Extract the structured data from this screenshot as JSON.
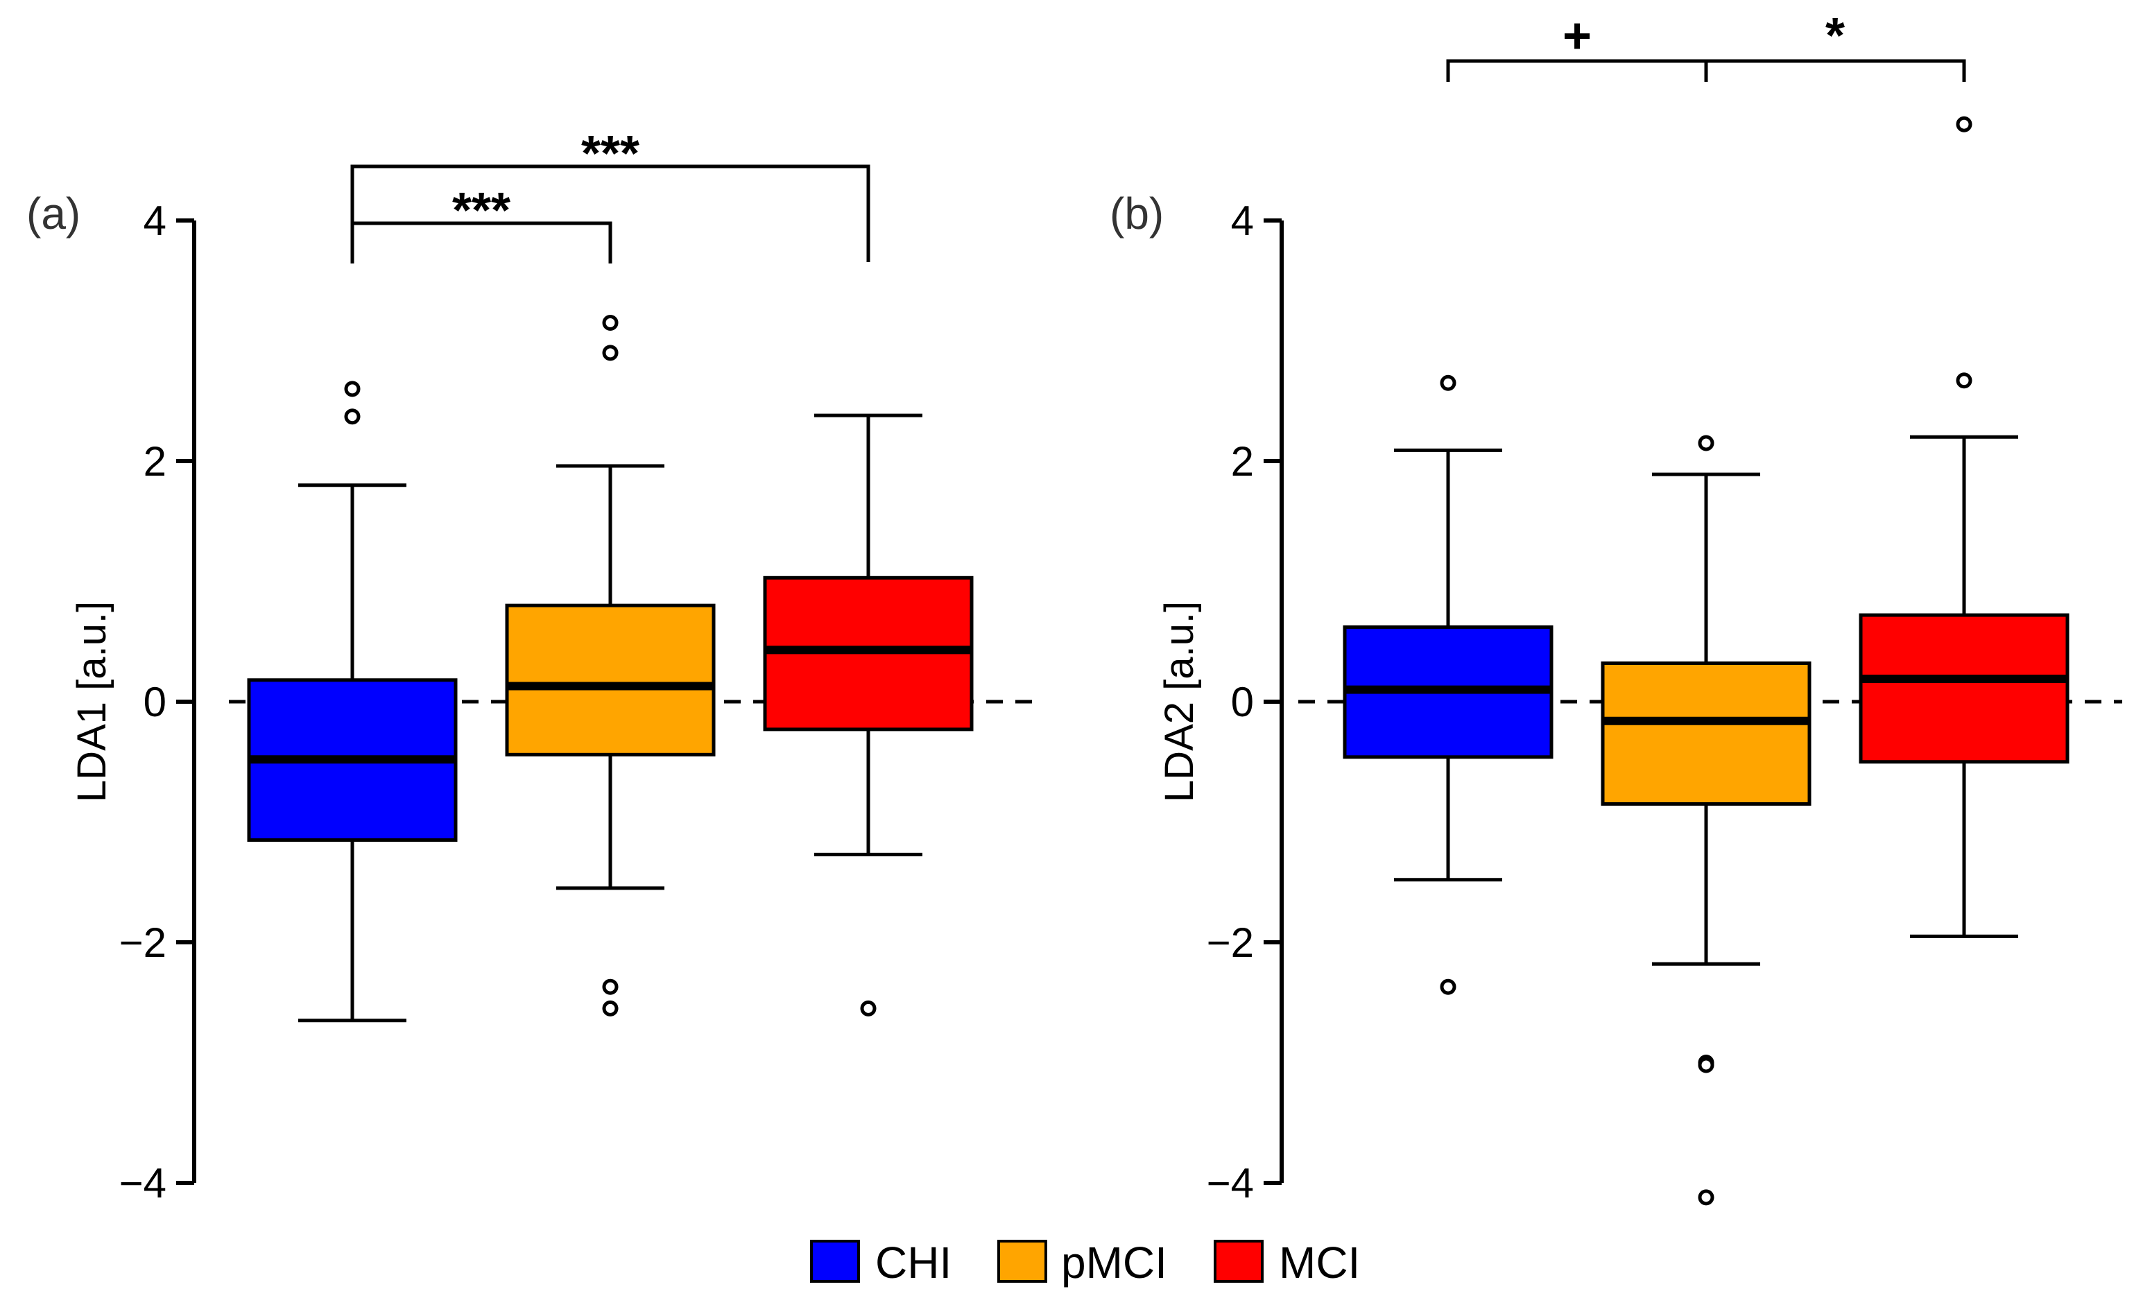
{
  "colors": {
    "CHI": "#0000FF",
    "pMCI": "#FFA500",
    "MCI": "#FF0000"
  },
  "legend": [
    {
      "name": "CHI",
      "color": "#0000FF"
    },
    {
      "name": "pMCI",
      "color": "#FFA500"
    },
    {
      "name": "MCI",
      "color": "#FF0000"
    }
  ],
  "chart_data": [
    {
      "type": "box",
      "panel_label": "(a)",
      "ylabel": "LDA1 [a.u.]",
      "ylim": [
        -4,
        4
      ],
      "yticks": [
        4,
        2,
        0,
        -2,
        -4
      ],
      "ytick_labels": [
        "4",
        "2",
        "0",
        "−2",
        "−4"
      ],
      "reference_line": 0,
      "groups": [
        {
          "name": "CHI",
          "whisker_low": -2.65,
          "q1": -1.15,
          "median": -0.48,
          "q3": 0.18,
          "whisker_high": 1.8,
          "outliers": [
            2.6,
            2.37
          ]
        },
        {
          "name": "pMCI",
          "whisker_low": -1.55,
          "q1": -0.44,
          "median": 0.13,
          "q3": 0.8,
          "whisker_high": 1.96,
          "outliers": [
            3.15,
            2.9,
            -2.37,
            -2.55
          ]
        },
        {
          "name": "MCI",
          "whisker_low": -1.27,
          "q1": -0.23,
          "median": 0.43,
          "q3": 1.03,
          "whisker_high": 2.38,
          "outliers": [
            -2.55
          ]
        }
      ],
      "significance": [
        {
          "from": "CHI",
          "to": "pMCI",
          "label": "***"
        },
        {
          "from": "CHI",
          "to": "MCI",
          "label": "***"
        }
      ]
    },
    {
      "type": "box",
      "panel_label": "(b)",
      "ylabel": "LDA2 [a.u.]",
      "ylim": [
        -4,
        4
      ],
      "yticks": [
        4,
        2,
        0,
        -2,
        -4
      ],
      "ytick_labels": [
        "4",
        "2",
        "0",
        "−2",
        "−4"
      ],
      "reference_line": 0,
      "groups": [
        {
          "name": "CHI",
          "whisker_low": -1.48,
          "q1": -0.46,
          "median": 0.1,
          "q3": 0.62,
          "whisker_high": 2.09,
          "outliers": [
            2.65,
            -2.37
          ]
        },
        {
          "name": "pMCI",
          "whisker_low": -2.18,
          "q1": -0.85,
          "median": -0.16,
          "q3": 0.32,
          "whisker_high": 1.89,
          "outliers": [
            2.15,
            -3.0,
            -3.02,
            -4.12
          ]
        },
        {
          "name": "MCI",
          "whisker_low": -1.95,
          "q1": -0.5,
          "median": 0.19,
          "q3": 0.72,
          "whisker_high": 2.2,
          "outliers": [
            4.8,
            2.67
          ]
        }
      ],
      "significance": [
        {
          "from": "CHI",
          "to": "pMCI",
          "label": "+"
        },
        {
          "from": "pMCI",
          "to": "MCI",
          "label": "*"
        }
      ]
    }
  ]
}
